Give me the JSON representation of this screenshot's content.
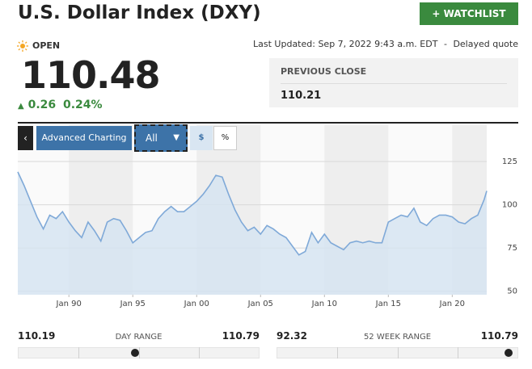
{
  "header": {
    "title": "U.S. Dollar Index (DXY)",
    "watchlist": "+ WATCHLIST"
  },
  "quote": {
    "status": "OPEN",
    "price": 110.48,
    "change": 0.26,
    "change_pct": "0.24%",
    "last_updated": "Last Updated: Sep 7, 2022 9:43 a.m. EDT",
    "separator": "-",
    "delayed": "Delayed quote",
    "previous_close_label": "PREVIOUS CLOSE",
    "previous_close": 110.21
  },
  "toolbar": {
    "advanced": "Advanced Charting",
    "period": "All",
    "dollar": "$",
    "percent": "%"
  },
  "chart_data": {
    "type": "area",
    "color": "#7fa9d8",
    "fill": "#d5e3f1",
    "x": [
      1986,
      1986.5,
      1987,
      1987.5,
      1988,
      1988.5,
      1989,
      1989.5,
      1990,
      1990.5,
      1991,
      1991.5,
      1992,
      1992.5,
      1993,
      1993.5,
      1994,
      1994.5,
      1995,
      1995.5,
      1996,
      1996.5,
      1997,
      1997.5,
      1998,
      1998.5,
      1999,
      1999.5,
      2000,
      2000.5,
      2001,
      2001.5,
      2002,
      2002.5,
      2003,
      2003.5,
      2004,
      2004.5,
      2005,
      2005.5,
      2006,
      2006.5,
      2007,
      2007.5,
      2008,
      2008.5,
      2009,
      2009.5,
      2010,
      2010.5,
      2011,
      2011.5,
      2012,
      2012.5,
      2013,
      2013.5,
      2014,
      2014.5,
      2015,
      2015.5,
      2016,
      2016.5,
      2017,
      2017.5,
      2018,
      2018.5,
      2019,
      2019.5,
      2020,
      2020.5,
      2021,
      2021.5,
      2022,
      2022.5,
      2022.7
    ],
    "values": [
      119,
      111,
      102,
      93,
      86,
      94,
      92,
      96,
      90,
      85,
      81,
      90,
      85,
      79,
      90,
      92,
      91,
      85,
      78,
      81,
      84,
      85,
      92,
      96,
      99,
      96,
      96,
      99,
      102,
      106,
      111,
      117,
      116,
      106,
      97,
      90,
      85,
      87,
      83,
      88,
      86,
      83,
      81,
      76,
      71,
      73,
      84,
      78,
      83,
      78,
      76,
      74,
      78,
      79,
      78,
      79,
      78,
      78,
      90,
      92,
      94,
      93,
      98,
      90,
      88,
      92,
      94,
      94,
      93,
      90,
      89,
      92,
      94,
      103,
      108
    ],
    "xlim": [
      1986,
      2022.7
    ],
    "xticks": [
      {
        "value": 1990,
        "label": "Jan 90"
      },
      {
        "value": 1995,
        "label": "Jan 95"
      },
      {
        "value": 2000,
        "label": "Jan 00"
      },
      {
        "value": 2005,
        "label": "Jan 05"
      },
      {
        "value": 2010,
        "label": "Jan 10"
      },
      {
        "value": 2015,
        "label": "Jan 15"
      },
      {
        "value": 2020,
        "label": "Jan 20"
      }
    ],
    "ylim": [
      48,
      146
    ],
    "yticks": [
      50,
      75,
      100,
      125
    ],
    "grid": true
  },
  "ranges": {
    "day": {
      "label": "DAY RANGE",
      "low": 110.19,
      "high": 110.79
    },
    "week52": {
      "label": "52 WEEK RANGE",
      "low": 92.32,
      "high": 110.79
    }
  }
}
